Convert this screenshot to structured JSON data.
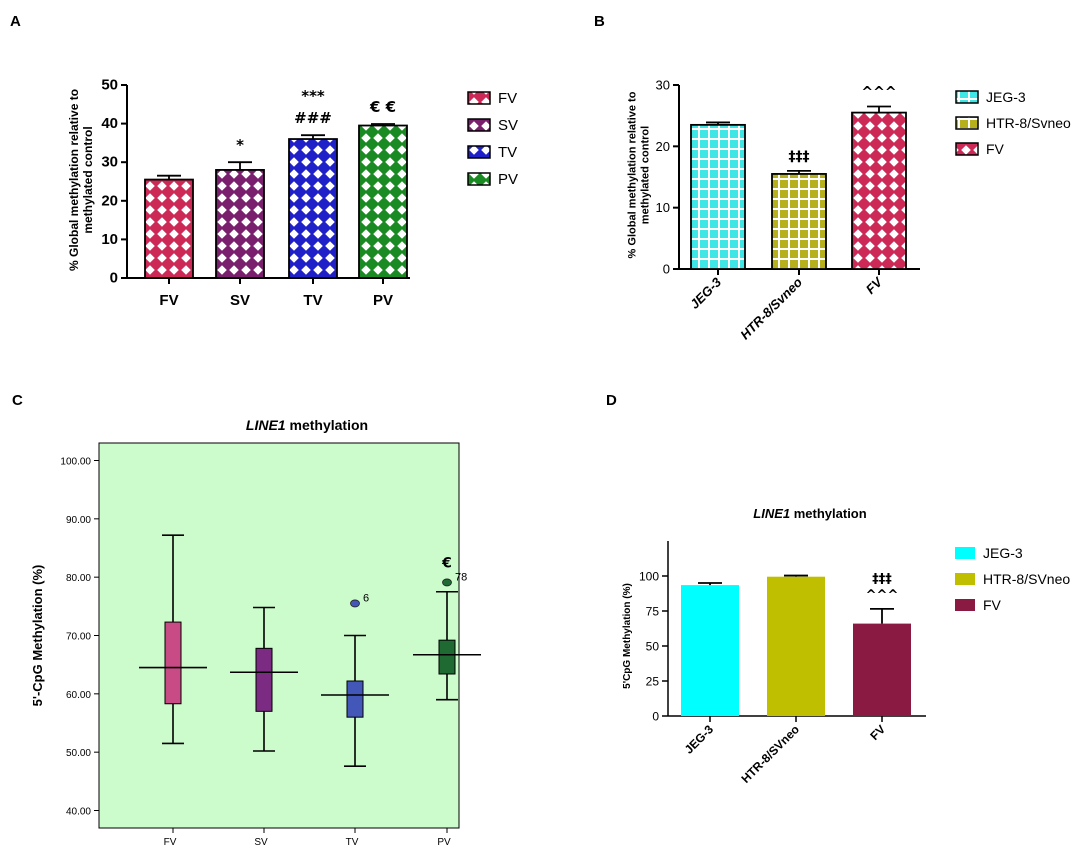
{
  "panels": {
    "A": {
      "letter": "A",
      "chart_data": {
        "type": "bar",
        "title": "",
        "ylabel": "% Global methylation relative to methylated control",
        "ylabel_lines": [
          "% Global methylation relative to",
          "methylated control"
        ],
        "xlabel": "",
        "ylim": [
          0,
          50
        ],
        "yticks": [
          0,
          10,
          20,
          30,
          40,
          50
        ],
        "categories": [
          "FV",
          "SV",
          "TV",
          "PV"
        ],
        "values": [
          25.5,
          28.0,
          36.0,
          39.5
        ],
        "errors": [
          1.0,
          2.0,
          1.0,
          0.4
        ],
        "colors": [
          "#cc2957",
          "#7a1f6e",
          "#2020c8",
          "#1a8a22"
        ],
        "annotations": [
          [],
          [
            "*"
          ],
          [
            "###",
            "***"
          ],
          [
            "€ €"
          ]
        ],
        "legend": [
          "FV",
          "SV",
          "TV",
          "PV"
        ],
        "legend_position": "right"
      }
    },
    "B": {
      "letter": "B",
      "chart_data": {
        "type": "bar",
        "title": "",
        "ylabel": "% Global methylation relative to methylated control",
        "ylabel_lines": [
          "% Global methylation relative to",
          "methylated control"
        ],
        "xlabel": "",
        "ylim": [
          0,
          30
        ],
        "yticks": [
          0,
          10,
          20,
          30
        ],
        "categories": [
          "JEG-3",
          "HTR-8/Svneo",
          "FV"
        ],
        "values": [
          23.5,
          15.5,
          25.5
        ],
        "errors": [
          0.4,
          0.5,
          1.0
        ],
        "colors": [
          "#3ee6e6",
          "#b5b01c",
          "#cc2957"
        ],
        "annotations": [
          [],
          [
            "‡‡‡"
          ],
          [
            "^^^"
          ]
        ],
        "legend": [
          "JEG-3",
          "HTR-8/Svneo",
          "FV"
        ],
        "legend_position": "right"
      }
    },
    "C": {
      "letter": "C",
      "chart_data": {
        "type": "box",
        "title_italic": "LINE1",
        "title_rest": " methylation",
        "ylabel": "5'-CpG Methylation (%)",
        "ylim": [
          37,
          103
        ],
        "yticks": [
          "40.00",
          "50.00",
          "60.00",
          "70.00",
          "80.00",
          "90.00",
          "100.00"
        ],
        "categories": [
          "FV",
          "SV",
          "TV",
          "PV"
        ],
        "boxes": [
          {
            "min": 51.5,
            "q1": 58.3,
            "median": 64.5,
            "q3": 72.3,
            "max": 87.2,
            "color": "#c84b86"
          },
          {
            "min": 50.2,
            "q1": 57.0,
            "median": 63.7,
            "q3": 67.8,
            "max": 74.8,
            "color": "#7b2b82"
          },
          {
            "min": 47.6,
            "q1": 56.0,
            "median": 59.8,
            "q3": 62.2,
            "max": 70.0,
            "color": "#4357b8"
          },
          {
            "min": 59.0,
            "q1": 63.4,
            "median": 66.7,
            "q3": 69.2,
            "max": 77.5,
            "color": "#1e6a32"
          }
        ],
        "outliers": [
          {
            "category": "TV",
            "value": 75.5,
            "label": "6",
            "color": "#4357b8"
          },
          {
            "category": "PV",
            "value": 79.1,
            "label": "78",
            "color": "#1e6a32"
          }
        ],
        "annotations": [
          {
            "category": "PV",
            "value": 82.5,
            "text": "€"
          }
        ],
        "background": "#ccfbcc"
      }
    },
    "D": {
      "letter": "D",
      "chart_data": {
        "type": "bar",
        "title_italic": "LINE1",
        "title_rest": " methylation",
        "ylabel": "5'CpG Methylation (%)",
        "ylim": [
          0,
          125
        ],
        "yticks": [
          0,
          25,
          50,
          75,
          100
        ],
        "categories": [
          "JEG-3",
          "HTR-8/SVneo",
          "FV"
        ],
        "values": [
          93.5,
          99.5,
          66.0
        ],
        "errors": [
          1.5,
          0.8,
          10.5
        ],
        "colors": [
          "#00ffff",
          "#bfbf00",
          "#8b1a42"
        ],
        "annotations": [
          [],
          [],
          [
            "^^^",
            "‡‡‡"
          ]
        ],
        "legend": [
          "JEG-3",
          "HTR-8/SVneo",
          "FV"
        ],
        "legend_position": "right"
      }
    }
  }
}
